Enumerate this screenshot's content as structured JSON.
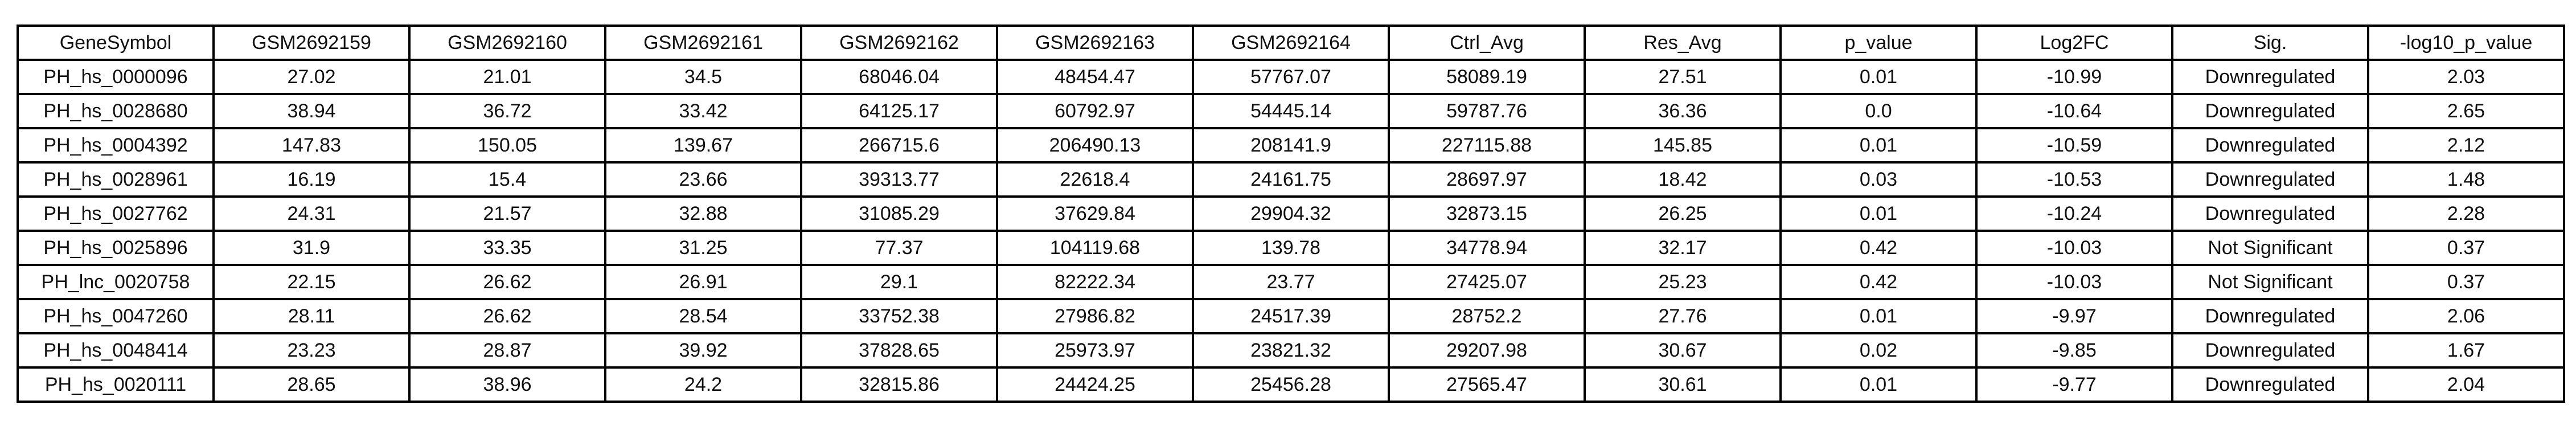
{
  "table": {
    "columns": [
      "GeneSymbol",
      "GSM2692159",
      "GSM2692160",
      "GSM2692161",
      "GSM2692162",
      "GSM2692163",
      "GSM2692164",
      "Ctrl_Avg",
      "Res_Avg",
      "p_value",
      "Log2FC",
      "Sig.",
      "-log10_p_value"
    ],
    "rows": [
      [
        "PH_hs_0000096",
        "27.02",
        "21.01",
        "34.5",
        "68046.04",
        "48454.47",
        "57767.07",
        "58089.19",
        "27.51",
        "0.01",
        "-10.99",
        "Downregulated",
        "2.03"
      ],
      [
        "PH_hs_0028680",
        "38.94",
        "36.72",
        "33.42",
        "64125.17",
        "60792.97",
        "54445.14",
        "59787.76",
        "36.36",
        "0.0",
        "-10.64",
        "Downregulated",
        "2.65"
      ],
      [
        "PH_hs_0004392",
        "147.83",
        "150.05",
        "139.67",
        "266715.6",
        "206490.13",
        "208141.9",
        "227115.88",
        "145.85",
        "0.01",
        "-10.59",
        "Downregulated",
        "2.12"
      ],
      [
        "PH_hs_0028961",
        "16.19",
        "15.4",
        "23.66",
        "39313.77",
        "22618.4",
        "24161.75",
        "28697.97",
        "18.42",
        "0.03",
        "-10.53",
        "Downregulated",
        "1.48"
      ],
      [
        "PH_hs_0027762",
        "24.31",
        "21.57",
        "32.88",
        "31085.29",
        "37629.84",
        "29904.32",
        "32873.15",
        "26.25",
        "0.01",
        "-10.24",
        "Downregulated",
        "2.28"
      ],
      [
        "PH_hs_0025896",
        "31.9",
        "33.35",
        "31.25",
        "77.37",
        "104119.68",
        "139.78",
        "34778.94",
        "32.17",
        "0.42",
        "-10.03",
        "Not Significant",
        "0.37"
      ],
      [
        "PH_lnc_0020758",
        "22.15",
        "26.62",
        "26.91",
        "29.1",
        "82222.34",
        "23.77",
        "27425.07",
        "25.23",
        "0.42",
        "-10.03",
        "Not Significant",
        "0.37"
      ],
      [
        "PH_hs_0047260",
        "28.11",
        "26.62",
        "28.54",
        "33752.38",
        "27986.82",
        "24517.39",
        "28752.2",
        "27.76",
        "0.01",
        "-9.97",
        "Downregulated",
        "2.06"
      ],
      [
        "PH_hs_0048414",
        "23.23",
        "28.87",
        "39.92",
        "37828.65",
        "25973.97",
        "23821.32",
        "29207.98",
        "30.67",
        "0.02",
        "-9.85",
        "Downregulated",
        "1.67"
      ],
      [
        "PH_hs_0020111",
        "28.65",
        "38.96",
        "24.2",
        "32815.86",
        "24424.25",
        "25456.28",
        "27565.47",
        "30.61",
        "0.01",
        "-9.77",
        "Downregulated",
        "2.04"
      ]
    ]
  }
}
